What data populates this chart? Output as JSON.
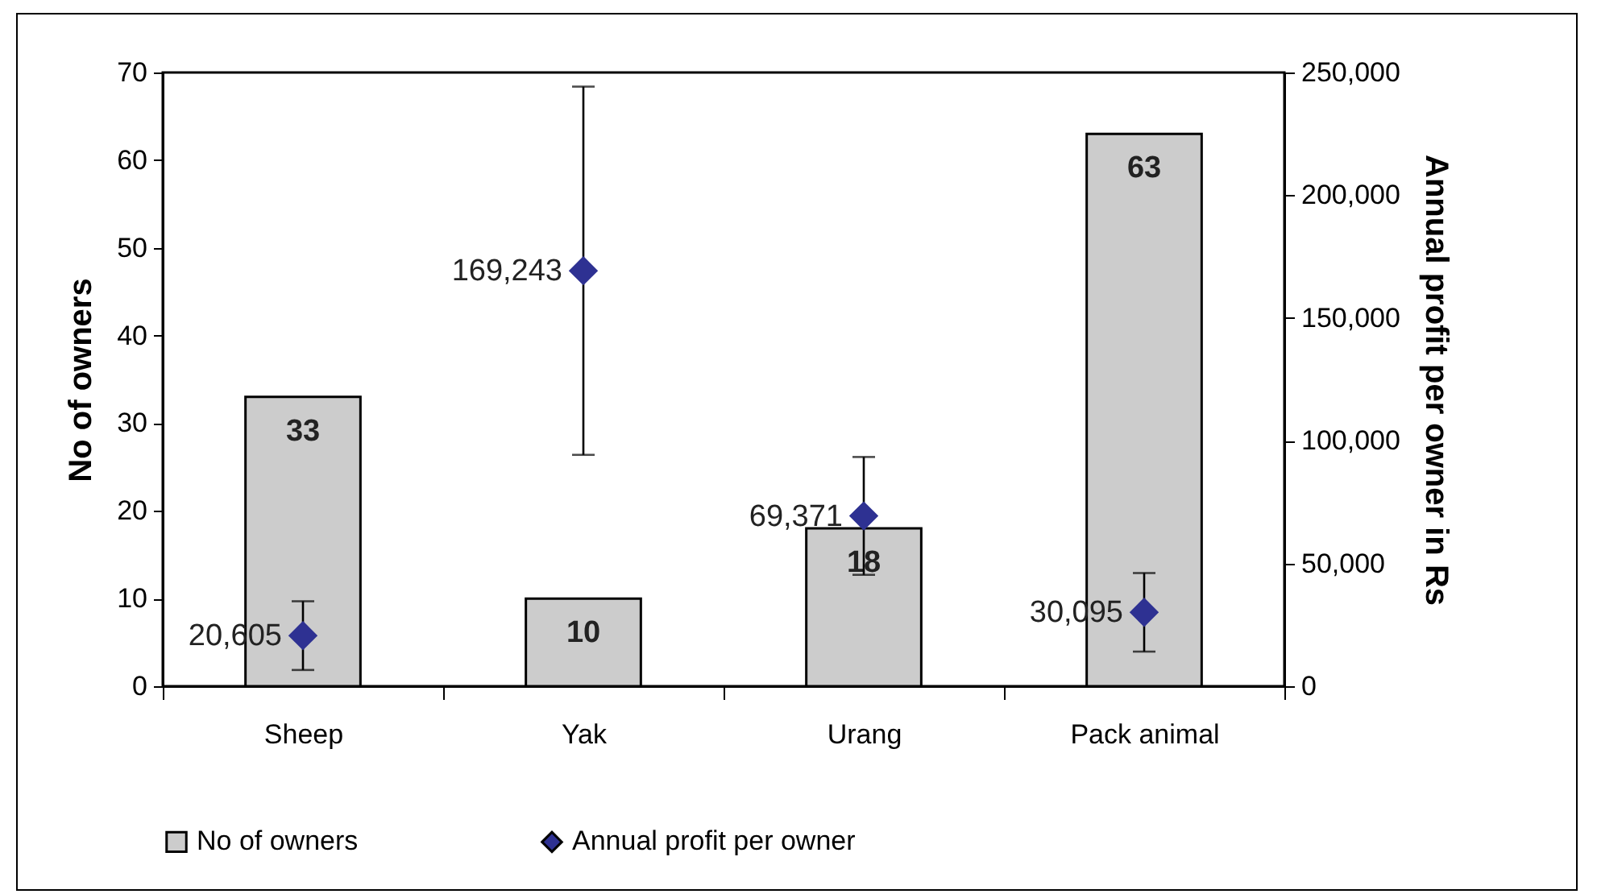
{
  "chart_data": {
    "type": "bar",
    "categories": [
      "Sheep",
      "Yak",
      "Urang",
      "Pack animal"
    ],
    "series": [
      {
        "name": "No of owners",
        "color": "#cccccc",
        "values": [
          33,
          10,
          18,
          63
        ]
      },
      {
        "name": "Annual  profit per owner",
        "type": "scatter",
        "axis": "y2",
        "color": "#2e3192",
        "values": [
          20605,
          169243,
          69371,
          30095
        ],
        "errors": [
          14000,
          75000,
          24000,
          16000
        ],
        "value_labels": [
          "20,605",
          "169,243",
          "69,371",
          "30,095"
        ]
      }
    ],
    "ylabel": "No of owners",
    "y2label": "Annual profit per owner in Rs",
    "ylim": [
      0,
      70
    ],
    "yticks": [
      0,
      10,
      20,
      30,
      40,
      50,
      60,
      70
    ],
    "y2lim": [
      0,
      250000
    ],
    "y2ticks": [
      {
        "value": 0,
        "label": "0"
      },
      {
        "value": 50000,
        "label": "50,000"
      },
      {
        "value": 100000,
        "label": "100,000"
      },
      {
        "value": 150000,
        "label": "150,000"
      },
      {
        "value": 200000,
        "label": "200,000"
      },
      {
        "value": 250000,
        "label": "250,000"
      }
    ],
    "data_labels": true,
    "legend": "bottom",
    "marker": "diamond",
    "grid": false
  }
}
